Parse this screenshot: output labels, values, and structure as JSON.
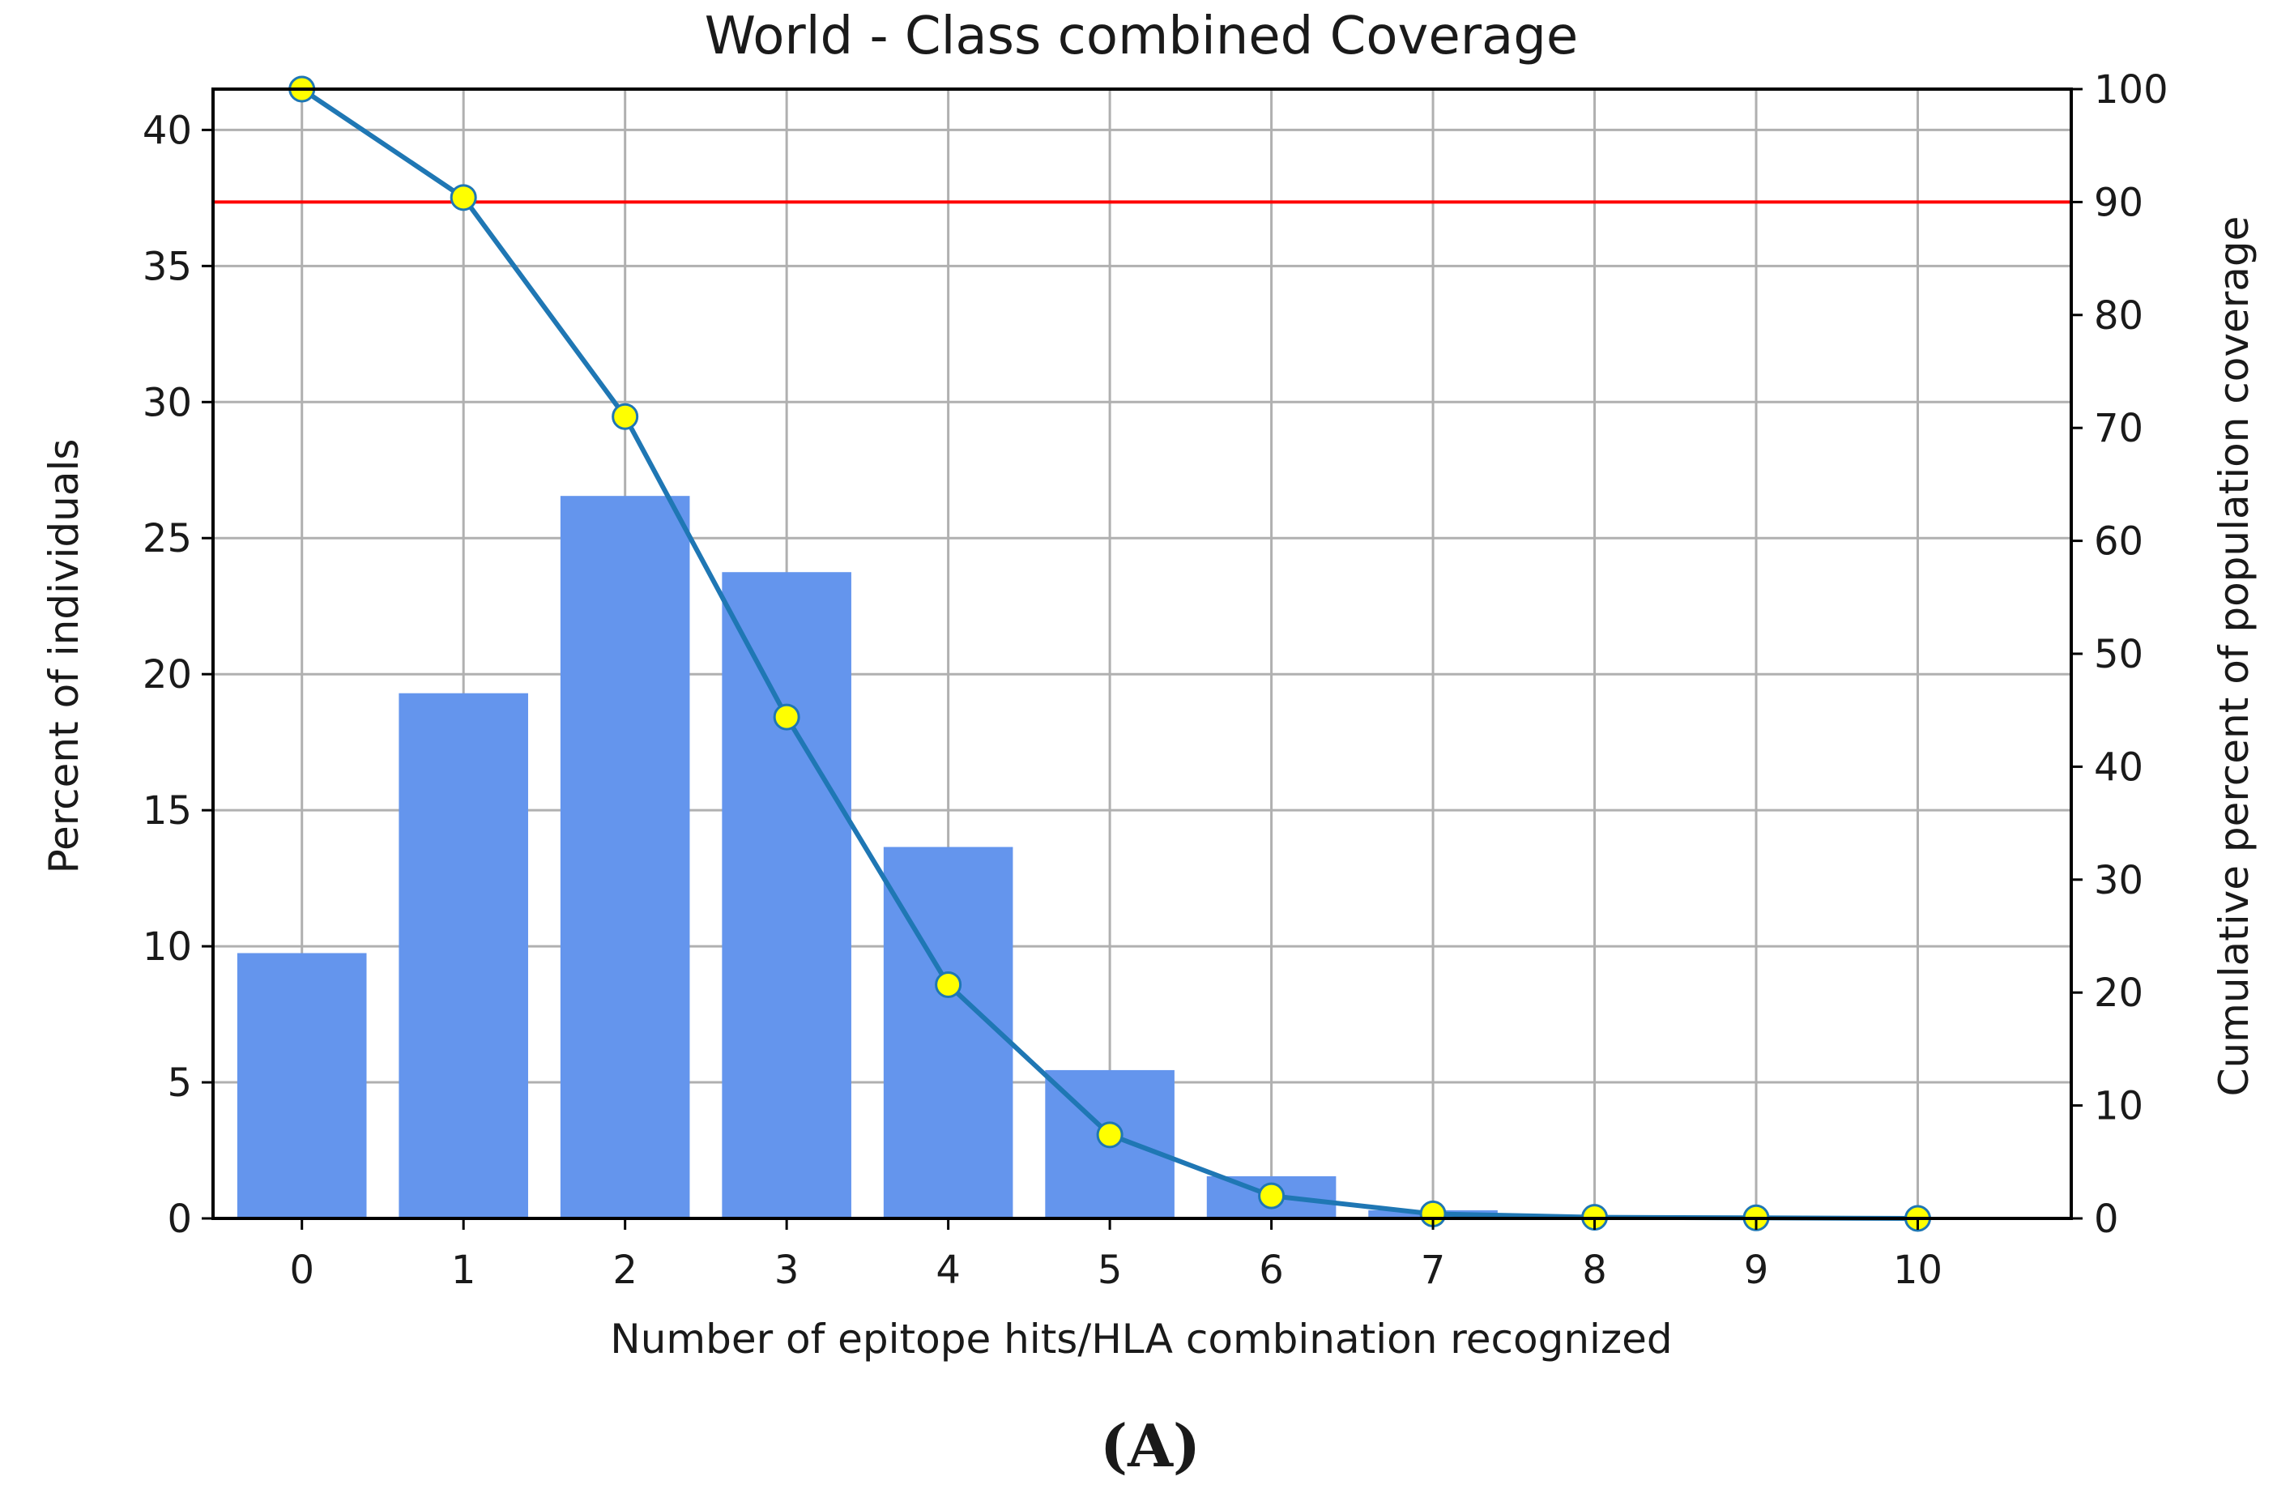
{
  "chart_data": {
    "type": "bar",
    "title": "World - Class combined Coverage",
    "xlabel": "Number of epitope hits/HLA combination recognized",
    "ylabel": "Percent of individuals",
    "y2label": "Cumulative percent of population coverage",
    "panel_label": "(A)",
    "categories": [
      "0",
      "1",
      "2",
      "3",
      "4",
      "5",
      "6",
      "7",
      "8",
      "9",
      "10"
    ],
    "xlim": [
      -0.55,
      10.95
    ],
    "ylim": [
      0,
      41.5
    ],
    "y2lim": [
      0,
      100
    ],
    "yticks": [
      0,
      5,
      10,
      15,
      20,
      25,
      30,
      35,
      40
    ],
    "y2ticks": [
      0,
      10,
      20,
      30,
      40,
      50,
      60,
      70,
      80,
      90,
      100
    ],
    "grid": true,
    "series": [
      {
        "kind": "bar",
        "axis": "left",
        "color": "#6495ED",
        "values": [
          9.75,
          19.3,
          26.55,
          23.75,
          13.65,
          5.45,
          1.55,
          0.3,
          0.05,
          0.0,
          0.0
        ]
      },
      {
        "kind": "line",
        "axis": "right",
        "color": "#1f77b4",
        "marker_fill": "#ffff00",
        "values": [
          100.0,
          90.4,
          71.0,
          44.4,
          20.7,
          7.4,
          2.0,
          0.4,
          0.1,
          0.05,
          0.0
        ]
      }
    ],
    "reference_line": {
      "axis": "right",
      "value": 90,
      "color": "#ff0000"
    }
  }
}
